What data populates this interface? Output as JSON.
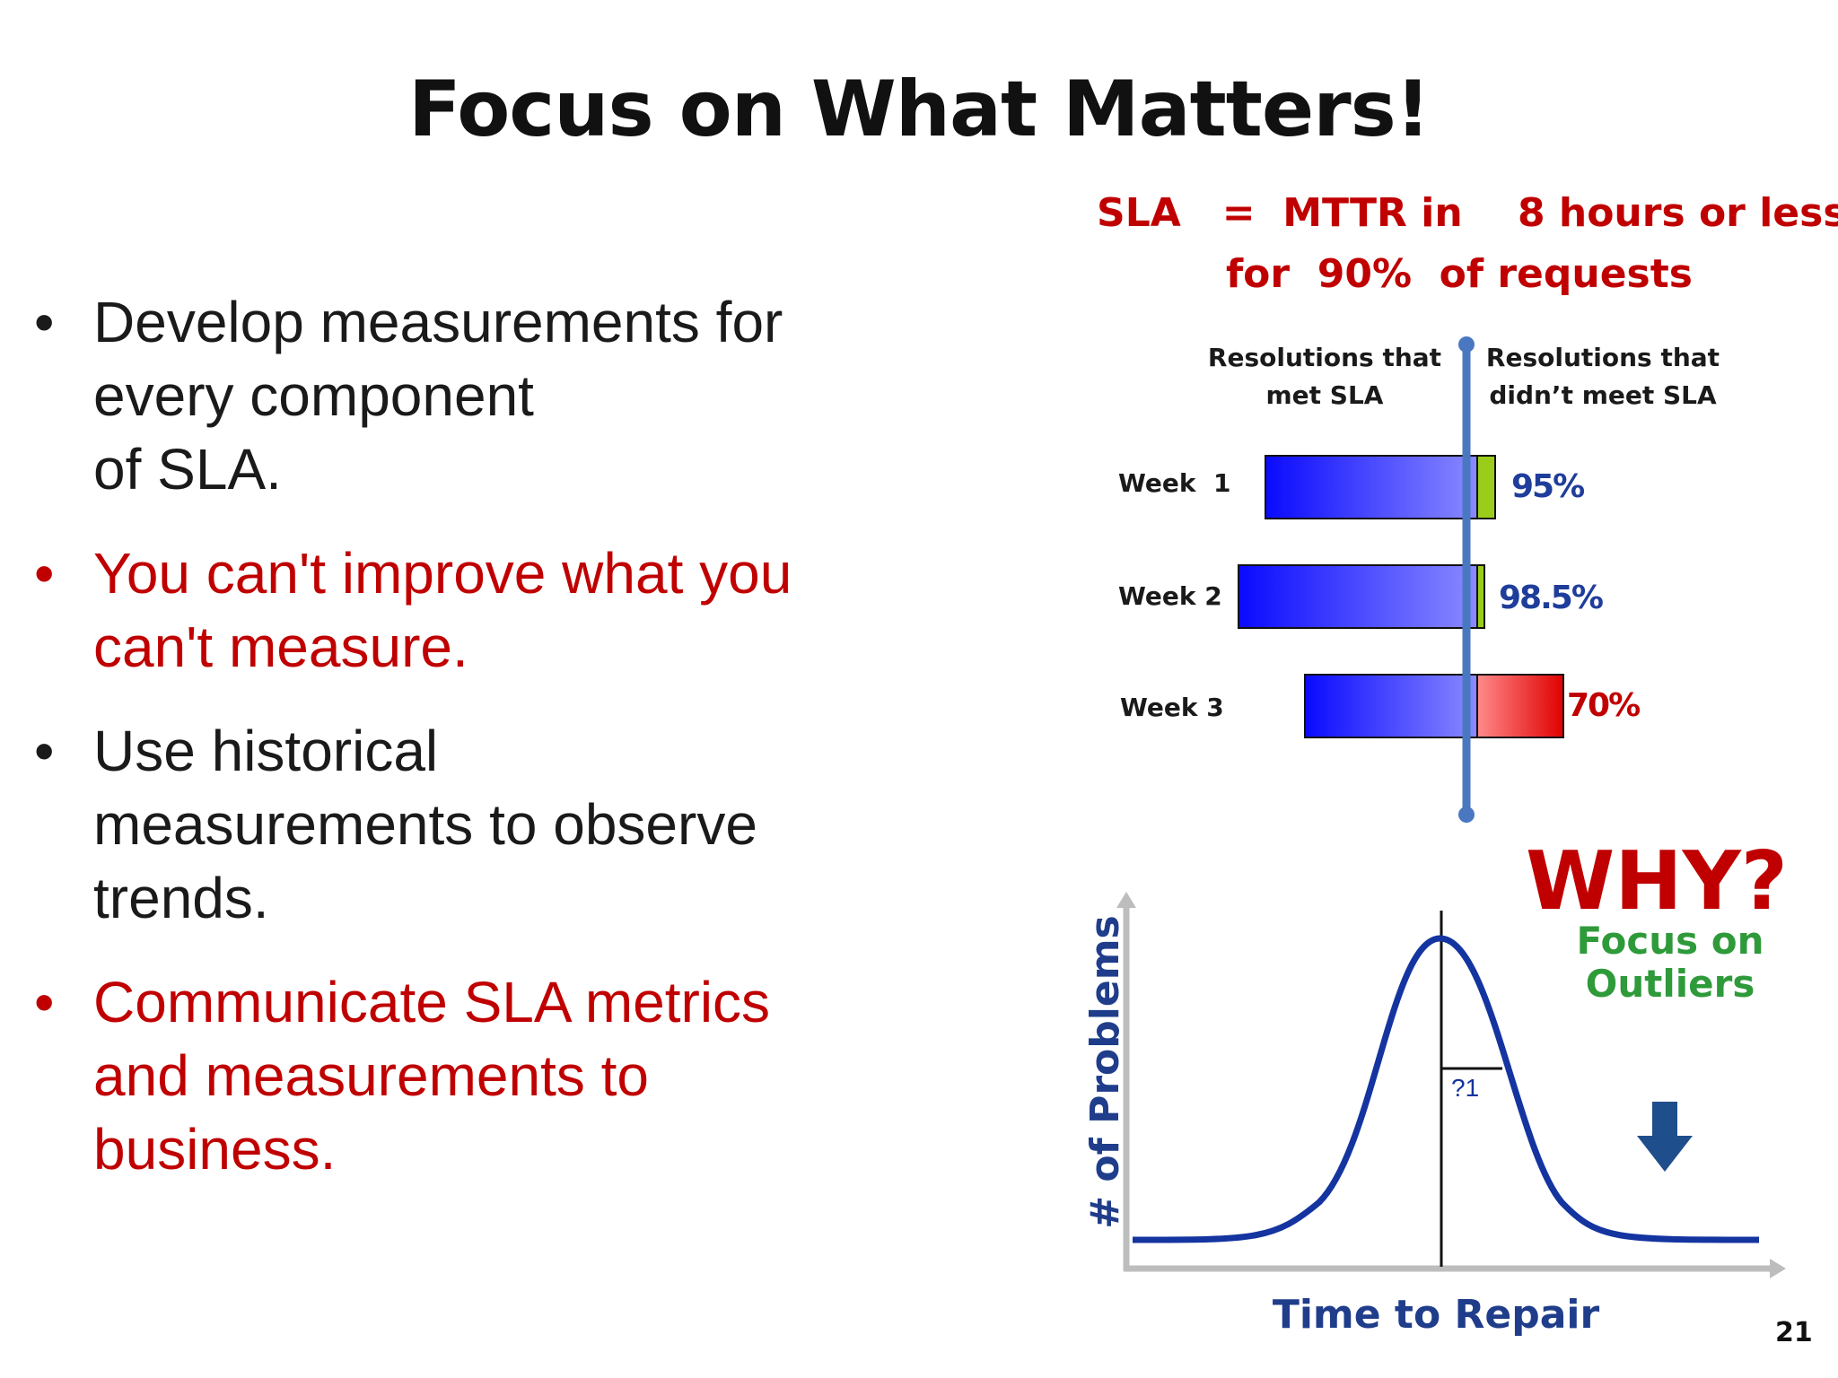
{
  "slide": {
    "title": "Focus on What Matters!",
    "page_number": "21"
  },
  "bullets": [
    {
      "text": "Develop measurements for every component of SLA.",
      "lines": [
        "Develop measurements for",
        "every component",
        "of SLA."
      ],
      "color": "#1a1a1a"
    },
    {
      "text": "You can't improve what you can't measure.",
      "lines": [
        "You can't improve what you",
        "can't measure."
      ],
      "color": "#c00000"
    },
    {
      "text": "Use historical measurements to observe trends.",
      "lines": [
        "Use historical",
        "measurements to observe",
        "trends."
      ],
      "color": "#1a1a1a"
    },
    {
      "text": "Communicate SLA metrics and measurements to business.",
      "lines": [
        "Communicate SLA metrics",
        "and measurements to",
        "business."
      ],
      "color": "#c00000"
    }
  ],
  "bullet_symbol": "•",
  "sla": {
    "line1": "SLA   =  MTTR in    8 hours or less",
    "line2": "for  90%  of requests"
  },
  "sla_chart": {
    "left_header": [
      "Resolutions that",
      "met SLA"
    ],
    "right_header": [
      "Resolutions that",
      "didn’t meet SLA"
    ],
    "weeks": [
      {
        "label": "Week  1",
        "percent_label": "95%",
        "percent": 95,
        "met_fraction": 0.12,
        "label_color": "#1f3d9a",
        "miss_color": "#9acd1a"
      },
      {
        "label": "Week 2",
        "percent_label": "98.5%",
        "percent": 98.5,
        "met_fraction": 0.04,
        "label_color": "#1f3d9a",
        "miss_color": "#9acd1a"
      },
      {
        "label": "Week 3",
        "percent_label": "70%",
        "percent": 70,
        "met_fraction": 0.33,
        "label_color": "#c00000",
        "miss_color": "#e00000"
      }
    ],
    "met_color": "#1010ff",
    "line_color": "#4a78c0"
  },
  "why": {
    "heading": "WHY?",
    "subtext": "Focus on Outliers"
  },
  "distribution_chart": {
    "type": "line",
    "ylabel": "# of Problems",
    "xlabel": "Time to Repair",
    "annotation": "?1",
    "curve_color": "#1434a0",
    "arrow_color": "#1f4e8c",
    "arrow_icon": "down-arrow-icon"
  }
}
